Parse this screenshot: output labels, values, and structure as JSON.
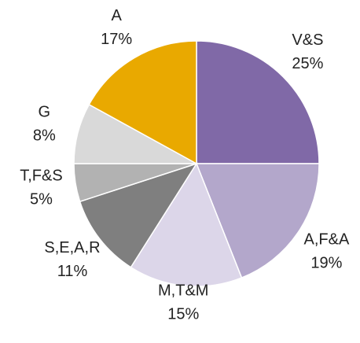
{
  "chart_data": {
    "type": "pie",
    "categories": [
      "V&S",
      "A,F&A",
      "M,T&M",
      "S,E,A,R",
      "T,F&S",
      "G",
      "A"
    ],
    "values": [
      25,
      19,
      15,
      11,
      5,
      8,
      17
    ],
    "value_labels": [
      "25%",
      "19%",
      "15%",
      "11%",
      "5%",
      "8%",
      "17%"
    ],
    "colors": [
      "#8069a7",
      "#b3a7cb",
      "#dcd6e9",
      "#7f7f7f",
      "#b2b2b2",
      "#d9d9d9",
      "#e9a900"
    ]
  }
}
